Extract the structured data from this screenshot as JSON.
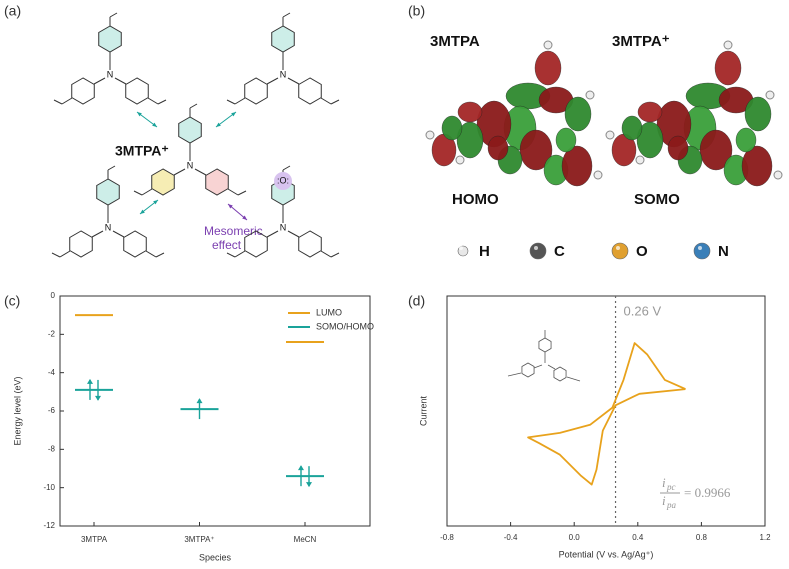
{
  "panels": {
    "a": "(a)",
    "b": "(b)",
    "c": "(c)",
    "d": "(d)"
  },
  "resonance": {
    "title": "3MTPA⁺",
    "annotation": [
      "Mesomeric",
      "effect"
    ],
    "nitrogen": "N",
    "oxygen": ":O:"
  },
  "orbitals": {
    "molecules": [
      "3MTPA",
      "3MTPA⁺"
    ],
    "orbitals": [
      "HOMO",
      "SOMO"
    ],
    "atoms": [
      "H",
      "C",
      "O",
      "N"
    ],
    "atom_colors": [
      "#e8e8e8",
      "#555555",
      "#e0a030",
      "#3a7fb8"
    ]
  },
  "chart_data": [
    {
      "type": "levels",
      "categories": [
        "3MTPA",
        "3MTPA⁺",
        "MeCN"
      ],
      "series": [
        {
          "name": "LUMO",
          "color": "#e8a21c",
          "values": [
            -1.0,
            null,
            -2.4
          ]
        },
        {
          "name": "SOMO/HOMO",
          "color": "#1aa39a",
          "values": [
            -4.9,
            -5.9,
            -9.4
          ],
          "electrons": [
            2,
            1,
            2
          ]
        }
      ],
      "ylim": [
        -12,
        0
      ],
      "yticks": [
        0,
        -2,
        -4,
        -6,
        -8,
        -10,
        -12
      ],
      "xlabel": "Species",
      "ylabel": "Energy level (eV)",
      "legend": "upper right"
    },
    {
      "type": "line",
      "x": [
        0.7,
        0.41,
        0.26,
        0.18,
        0.14,
        0.11,
        0.04,
        -0.09,
        -0.22,
        -0.29,
        -0.09,
        0.1,
        0.24,
        0.31,
        0.38,
        0.46,
        0.57,
        0.7
      ],
      "series": [
        {
          "color": "#e8a21c",
          "values": [
            0.19,
            0.15,
            0.05,
            -0.17,
            -0.51,
            -0.64,
            -0.56,
            -0.38,
            -0.28,
            -0.23,
            -0.19,
            -0.12,
            0.03,
            0.27,
            0.59,
            0.49,
            0.27,
            0.19
          ]
        }
      ],
      "xlim": [
        -0.8,
        1.2
      ],
      "xticks": [
        -0.8,
        -0.4,
        {
          "value": 0,
          "label": "0.0"
        },
        0.4,
        0.8,
        1.2
      ],
      "ylim": [
        -1,
        1
      ],
      "xlabel": "Potential (V vs. Ag/Ag⁺)",
      "ylabel": "Current",
      "vline": {
        "x": 0.26,
        "label": "0.26 V"
      },
      "ratio": {
        "numerator": "i",
        "numerator_sub": "pc",
        "denominator": "i",
        "denominator_sub": "pa",
        "text": "= 0.9966"
      }
    }
  ]
}
